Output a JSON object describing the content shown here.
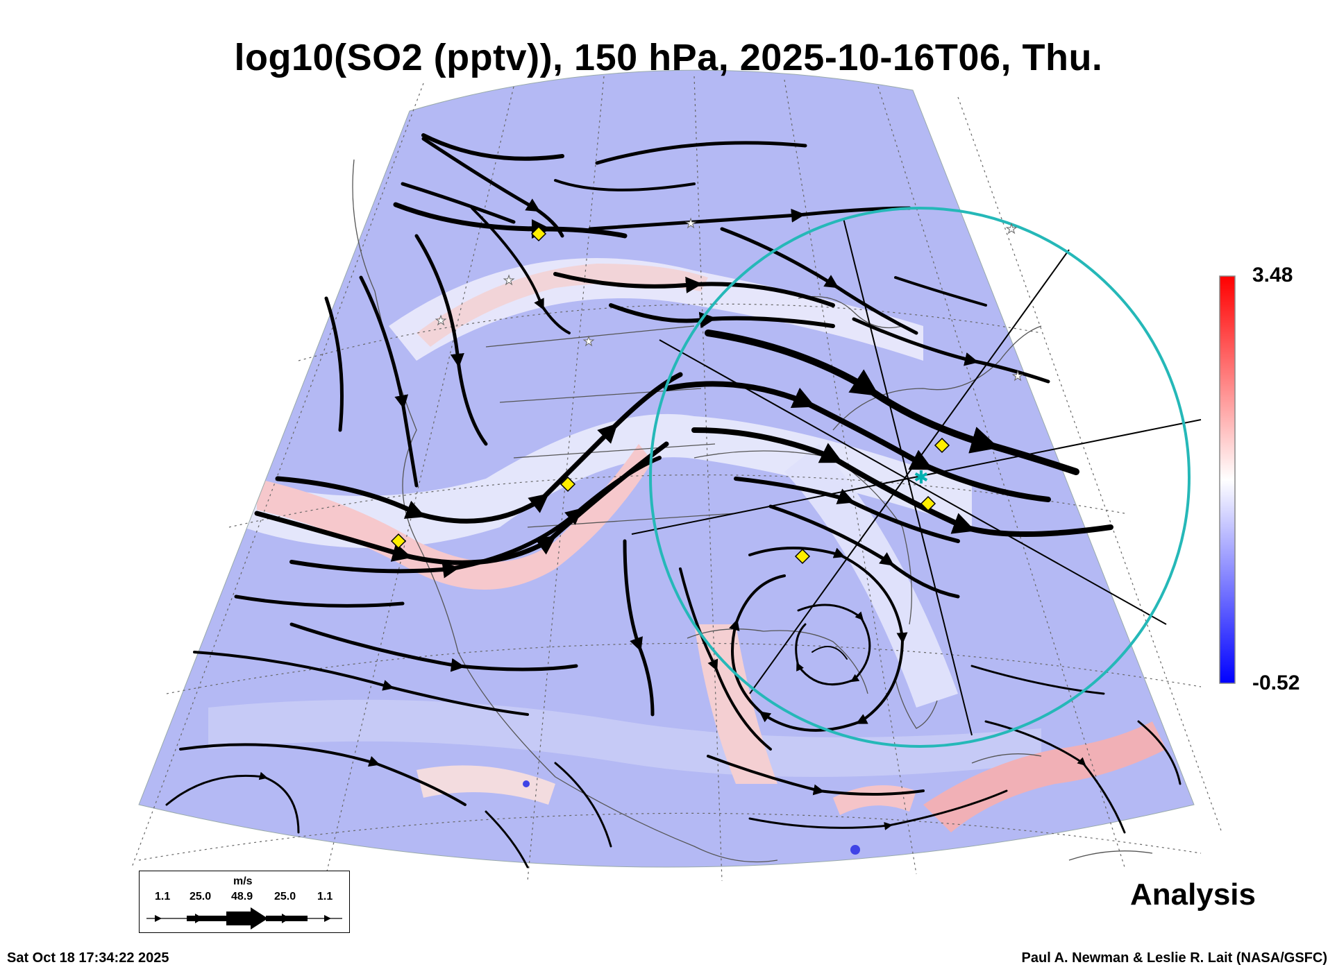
{
  "title": "log10(SO2 (pptv)), 150 hPa, 2025-10-16T06, Thu.",
  "colorbar": {
    "max_label": "3.48",
    "min_label": "-0.52",
    "colors": {
      "high": "#ff0000",
      "mid": "#ffffff",
      "low": "#0000ff"
    }
  },
  "panel_label": "Analysis",
  "timestamp": "Sat Oct 18 17:34:22 2025",
  "credit": "Paul A. Newman & Leslie R. Lait (NASA/GSFC)",
  "wind_legend": {
    "unit": "m/s",
    "values": [
      "1.1",
      "25.0",
      "48.9",
      "25.0",
      "1.1"
    ]
  },
  "colors": {
    "field_base": "#b4b9f4",
    "circle": "#25b8b8",
    "marker": "#ffee00",
    "streamline": "#000000"
  }
}
